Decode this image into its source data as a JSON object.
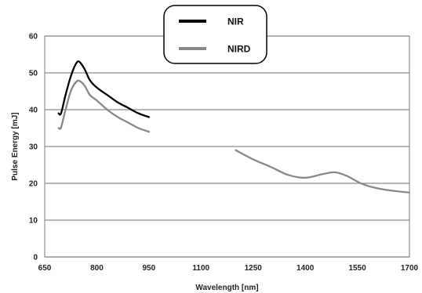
{
  "chart_data": {
    "type": "line",
    "xlabel": "Wavelength [nm]",
    "ylabel": "Pulse Energy [mJ]",
    "xlim": [
      650,
      1700
    ],
    "ylim": [
      0,
      60
    ],
    "x_ticks": [
      650,
      800,
      950,
      1100,
      1250,
      1400,
      1550,
      1700
    ],
    "y_ticks": [
      0,
      10,
      20,
      30,
      40,
      50,
      60
    ],
    "grid": "horizontal",
    "legend_position": "top-center",
    "series": [
      {
        "name": "NIR",
        "color": "#000000",
        "segments": [
          [
            [
              690,
              39
            ],
            [
              697,
              39
            ],
            [
              710,
              44
            ],
            [
              725,
              49
            ],
            [
              740,
              52.5
            ],
            [
              750,
              53
            ],
            [
              765,
              51
            ],
            [
              780,
              48
            ],
            [
              800,
              46
            ],
            [
              830,
              44
            ],
            [
              860,
              42
            ],
            [
              890,
              40.5
            ],
            [
              920,
              39
            ],
            [
              950,
              38
            ]
          ]
        ]
      },
      {
        "name": "NIRD",
        "color": "#888888",
        "segments": [
          [
            [
              690,
              35
            ],
            [
              697,
              35.2
            ],
            [
              710,
              40
            ],
            [
              725,
              45
            ],
            [
              740,
              47.5
            ],
            [
              750,
              47.8
            ],
            [
              765,
              46.5
            ],
            [
              780,
              44
            ],
            [
              800,
              42.5
            ],
            [
              830,
              40
            ],
            [
              860,
              38
            ],
            [
              890,
              36.5
            ],
            [
              920,
              35
            ],
            [
              950,
              34
            ]
          ],
          [
            [
              1200,
              29
            ],
            [
              1250,
              26.5
            ],
            [
              1300,
              24.5
            ],
            [
              1350,
              22.3
            ],
            [
              1400,
              21.5
            ],
            [
              1450,
              22.5
            ],
            [
              1485,
              23
            ],
            [
              1520,
              22
            ],
            [
              1560,
              20
            ],
            [
              1600,
              18.8
            ],
            [
              1650,
              18
            ],
            [
              1700,
              17.5
            ]
          ]
        ]
      }
    ]
  }
}
